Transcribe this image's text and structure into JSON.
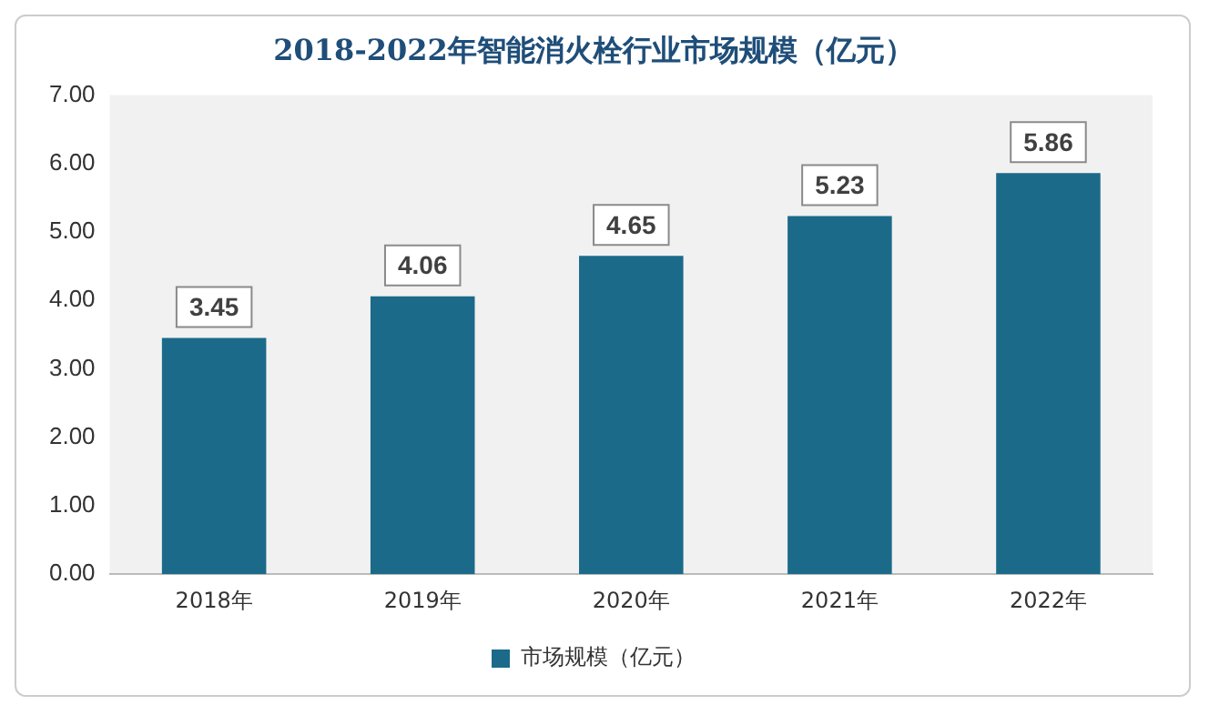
{
  "chart_data": {
    "type": "bar",
    "title": "2018-2022年智能消火栓行业市场规模（亿元）",
    "categories": [
      "2018年",
      "2019年",
      "2020年",
      "2021年",
      "2022年"
    ],
    "series": [
      {
        "name": "市场规模（亿元）",
        "color": "#1b6a8a",
        "values": [
          3.45,
          4.06,
          4.65,
          5.23,
          5.86
        ]
      }
    ],
    "ylim": [
      0,
      7
    ],
    "yticks": [
      {
        "value": 0,
        "label": "0.00"
      },
      {
        "value": 1,
        "label": "1.00"
      },
      {
        "value": 2,
        "label": "2.00"
      },
      {
        "value": 3,
        "label": "3.00"
      },
      {
        "value": 4,
        "label": "4.00"
      },
      {
        "value": 5,
        "label": "5.00"
      },
      {
        "value": 6,
        "label": "6.00"
      },
      {
        "value": 7,
        "label": "7.00"
      }
    ],
    "data_labels": true,
    "legend": "bottom",
    "grid": false
  }
}
